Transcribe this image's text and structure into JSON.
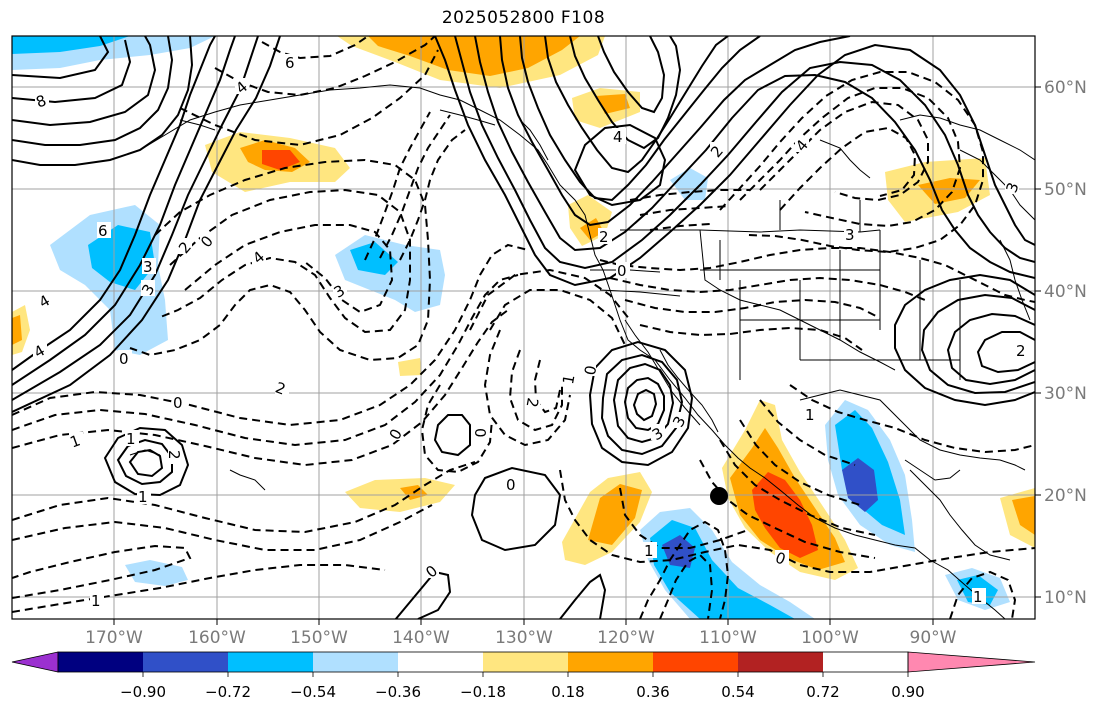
{
  "title": "2025052800 F108",
  "lon_labels": [
    "170°W",
    "160°W",
    "150°W",
    "140°W",
    "130°W",
    "120°W",
    "110°W",
    "100°W",
    "90°W"
  ],
  "lat_labels": [
    "60°N",
    "50°N",
    "40°N",
    "30°N",
    "20°N",
    "10°N"
  ],
  "colorbar": {
    "ticks": [
      "−0.90",
      "−0.72",
      "−0.54",
      "−0.36",
      "−0.18",
      "0.18",
      "0.36",
      "0.54",
      "0.72",
      "0.90"
    ],
    "colors": [
      "#9b30d0",
      "#000080",
      "#3050c8",
      "#00bfff",
      "#b0e0ff",
      "#ffffff",
      "#ffe680",
      "#ffa500",
      "#ff4500",
      "#b22222",
      "#ff88b0"
    ]
  },
  "contour_labels": [
    "6",
    "8",
    "4",
    "4",
    "6",
    "2",
    "0",
    "4",
    "3",
    "2",
    "0",
    "4",
    "3",
    "2",
    "3",
    "4",
    "3",
    "0",
    "4",
    "2",
    "3",
    "3",
    "1",
    "0",
    "2",
    "0",
    "1",
    "1",
    "0",
    "0",
    "1",
    "2",
    "1",
    "1",
    "0",
    "0",
    "1",
    "0",
    "1",
    "2",
    "3"
  ],
  "colors": {
    "shade_light_blue": "#b0e0ff",
    "shade_blue": "#00bfff",
    "shade_dark_blue": "#3050c8",
    "shade_light_yellow": "#ffe680",
    "shade_orange": "#ffa500",
    "shade_red_orange": "#ff4500",
    "grid": "#a0a0a0",
    "axis_text": "#7a7a7a"
  },
  "markers": [
    "black-dot"
  ]
}
